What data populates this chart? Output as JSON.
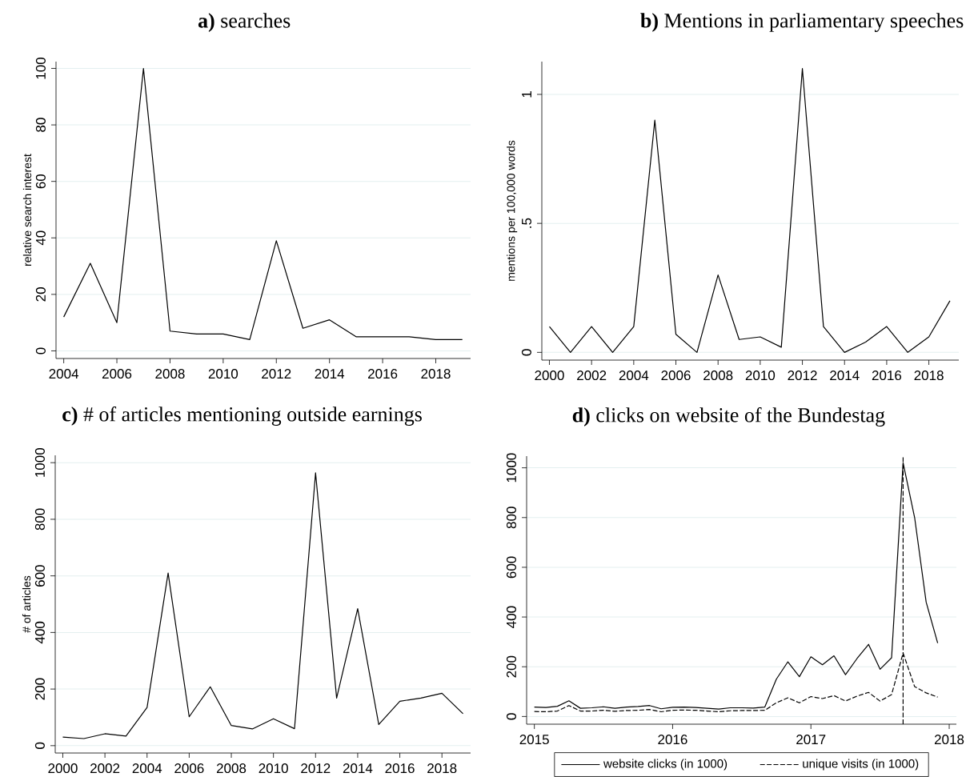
{
  "chart_data": [
    {
      "type": "line",
      "title": "**a)** searches",
      "ylabel": "relative search interest",
      "grid": "y",
      "x": [
        2004,
        2005,
        2006,
        2007,
        2008,
        2009,
        2010,
        2011,
        2012,
        2013,
        2014,
        2015,
        2016,
        2017,
        2018,
        2019
      ],
      "series": [
        {
          "color": "#000000",
          "values": [
            12,
            31,
            10,
            100,
            7,
            6,
            6,
            4,
            39,
            8,
            11,
            5,
            5,
            5,
            4,
            4
          ]
        }
      ],
      "xlim": [
        2003.71,
        2019.31
      ],
      "ylim": [
        -2.7,
        102.4
      ],
      "xticks": [
        2004,
        2006,
        2008,
        2010,
        2012,
        2014,
        2016,
        2018
      ],
      "yticks": [
        0,
        20,
        40,
        60,
        80,
        100
      ]
    },
    {
      "type": "line",
      "title": "**b)** Mentions in parliamentary speeches",
      "ylabel": "mentions per 100,000 words",
      "grid": "y",
      "x": [
        2000,
        2001,
        2002,
        2003,
        2004,
        2005,
        2006,
        2007,
        2008,
        2009,
        2010,
        2011,
        2012,
        2013,
        2014,
        2015,
        2016,
        2017,
        2018,
        2019
      ],
      "series": [
        {
          "color": "#000000",
          "values": [
            0.1,
            0,
            0.1,
            0,
            0.1,
            0.9,
            0.07,
            0,
            0.3,
            0.05,
            0.06,
            0.02,
            1.1,
            0.1,
            0,
            0.04,
            0.1,
            0,
            0.06,
            0.2
          ]
        }
      ],
      "xlim": [
        1999.64,
        2019.42
      ],
      "ylim": [
        -0.03,
        1.127
      ],
      "xticks": [
        2000,
        2002,
        2004,
        2006,
        2008,
        2010,
        2012,
        2014,
        2016,
        2018
      ],
      "yticks": [
        0,
        {
          "value": 0.5,
          "label": ".5"
        },
        1
      ]
    },
    {
      "type": "line",
      "title": "**c)** # of articles mentioning outside earnings",
      "ylabel": "# of articles",
      "grid": "y",
      "x": [
        2000,
        2001,
        2002,
        2003,
        2004,
        2005,
        2006,
        2007,
        2008,
        2009,
        2010,
        2011,
        2012,
        2013,
        2014,
        2015,
        2016,
        2017,
        2018,
        2019
      ],
      "series": [
        {
          "color": "#000000",
          "values": [
            30,
            25,
            42,
            34,
            135,
            610,
            102,
            208,
            71,
            59,
            95,
            60,
            964,
            168,
            484,
            75,
            157,
            168,
            185,
            113
          ]
        }
      ],
      "xlim": [
        1999.64,
        2019.36
      ],
      "ylim": [
        -26,
        1026
      ],
      "xticks": [
        2000,
        2002,
        2004,
        2006,
        2008,
        2010,
        2012,
        2014,
        2016,
        2018
      ],
      "yticks": [
        0,
        200,
        400,
        600,
        800,
        1000
      ]
    },
    {
      "type": "line",
      "title": "**d)** clicks on website of the Bundestag",
      "grid": "y",
      "legend": "bottom",
      "x": [
        "2015-01",
        "2015-02",
        "2015-03",
        "2015-04",
        "2015-05",
        "2015-06",
        "2015-07",
        "2015-08",
        "2015-09",
        "2015-10",
        "2015-11",
        "2015-12",
        "2016-01",
        "2016-02",
        "2016-03",
        "2016-04",
        "2016-05",
        "2016-06",
        "2016-07",
        "2016-08",
        "2016-09",
        "2016-10",
        "2016-11",
        "2016-12",
        "2017-01",
        "2017-02",
        "2017-03",
        "2017-04",
        "2017-05",
        "2017-06",
        "2017-07",
        "2017-08",
        "2017-09",
        "2017-10",
        "2017-11",
        "2017-12"
      ],
      "series": [
        {
          "name": "website clicks (in 1000)",
          "color": "#000000",
          "line_style": "solid",
          "values": [
            38,
            36,
            41,
            63,
            33,
            35,
            39,
            33,
            38,
            40,
            44,
            31,
            37,
            38,
            36,
            33,
            30,
            35,
            35,
            34,
            38,
            150,
            220,
            160,
            240,
            208,
            244,
            168,
            233,
            290,
            190,
            236,
            1020,
            800,
            460,
            295
          ]
        },
        {
          "name": "unique visits (in 1000)",
          "color": "#000000",
          "line_style": "dashed",
          "values": [
            20,
            19,
            22,
            44,
            22,
            22,
            25,
            21,
            24,
            25,
            28,
            19,
            25,
            26,
            25,
            22,
            19,
            23,
            24,
            24,
            25,
            55,
            75,
            55,
            80,
            72,
            84,
            62,
            82,
            97,
            62,
            88,
            255,
            120,
            95,
            78
          ]
        }
      ],
      "ref_lines": [
        {
          "axis": "x",
          "value": "2017-09",
          "color": "#000000",
          "line_style": "dashed"
        }
      ],
      "xlim": [
        "2014-12-11",
        "2018-01-20"
      ],
      "ylim": [
        -31,
        1047
      ],
      "xticks": [
        "2015",
        "2016",
        "2017",
        "2018"
      ],
      "yticks": [
        0,
        200,
        400,
        600,
        800,
        1000
      ]
    }
  ]
}
